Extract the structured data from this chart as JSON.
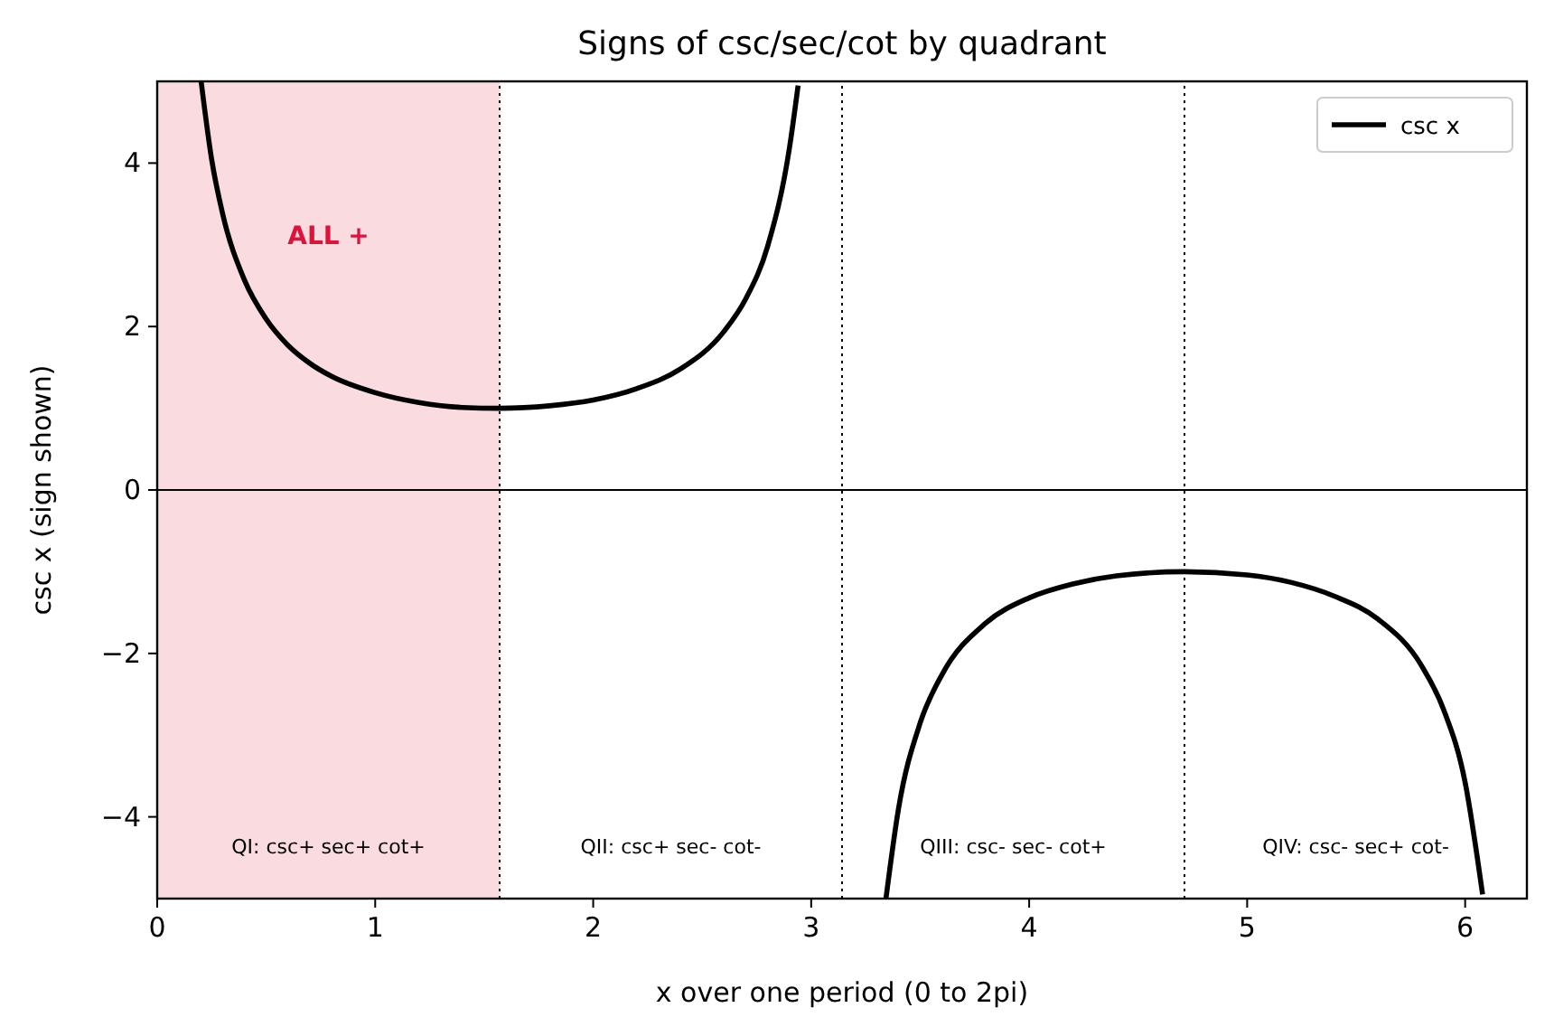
{
  "chart_data": {
    "type": "line",
    "title": "Signs of csc/sec/cot by quadrant",
    "xlabel": "x over one period (0 to 2pi)",
    "ylabel": "csc x (sign shown)",
    "x": [
      0.2014,
      0.25,
      0.3,
      0.4,
      0.5,
      0.6,
      0.7,
      0.8,
      1.0,
      1.2,
      1.4,
      1.5708,
      1.8,
      2.0,
      2.2,
      2.4,
      2.6,
      2.7,
      2.8,
      2.9,
      2.94,
      3.1416,
      3.343,
      3.4,
      3.5,
      3.6,
      3.8,
      4.0,
      4.2,
      4.4,
      4.7124,
      5.0,
      5.2,
      5.4,
      5.6,
      5.8,
      5.9,
      6.0,
      6.08
    ],
    "series": [
      {
        "name": "csc x",
        "color": "#000000",
        "values": [
          5,
          4.04,
          3.38,
          2.57,
          2.09,
          1.77,
          1.55,
          1.39,
          1.19,
          1.07,
          1.01,
          1,
          1.03,
          1.1,
          1.24,
          1.48,
          1.94,
          2.34,
          2.98,
          4.18,
          4.95,
          null,
          -5,
          -3.91,
          -2.85,
          -2.26,
          -1.63,
          -1.32,
          -1.15,
          -1.05,
          -1,
          -1.04,
          -1.13,
          -1.3,
          -1.58,
          -2.15,
          -2.68,
          -3.58,
          -4.95
        ]
      }
    ],
    "xlim": [
      0,
      6.2832
    ],
    "ylim": [
      -5,
      5
    ],
    "xticks": [
      0,
      1,
      2,
      3,
      4,
      5,
      6
    ],
    "yticks": [
      {
        "value": -4,
        "label": "−4"
      },
      {
        "value": -2,
        "label": "−2"
      },
      0,
      2,
      4
    ],
    "ref_lines": [
      {
        "axis": "y",
        "value": 0,
        "line_style": "solid",
        "color": "#000000"
      },
      {
        "axis": "x",
        "value": 1.5708,
        "line_style": "dotted",
        "color": "#000000"
      },
      {
        "axis": "x",
        "value": 3.1416,
        "line_style": "dotted",
        "color": "#000000"
      },
      {
        "axis": "x",
        "value": 4.7124,
        "line_style": "dotted",
        "color": "#000000"
      }
    ],
    "bands": [
      {
        "axis": "x",
        "from": 0,
        "to": 1.5708,
        "label": "ALL +",
        "color": "#f9dbe0"
      }
    ],
    "annotations": [
      "QI: csc+ sec+ cot+",
      "QII: csc+ sec- cot-",
      "QIII: csc- sec- cot+",
      "QIV: csc- sec+ cot-"
    ],
    "grid": false,
    "legend": "top right",
    "marker": "none",
    "line_style": "solid"
  }
}
